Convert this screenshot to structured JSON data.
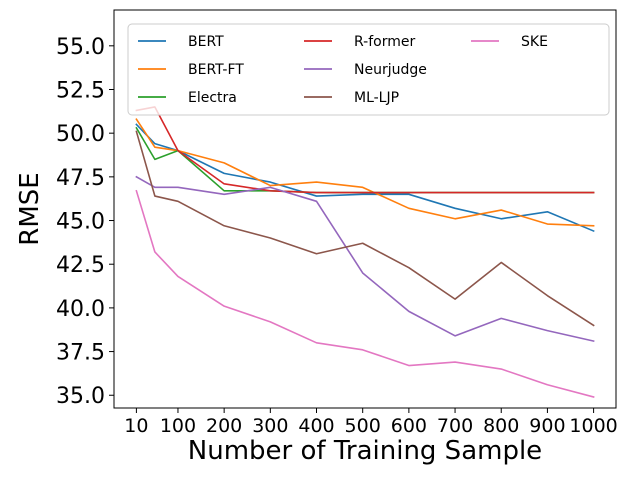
{
  "chart_data": {
    "type": "line",
    "title": "",
    "xlabel": "Number of Training Sample",
    "ylabel": "RMSE",
    "x": [
      10,
      50,
      100,
      200,
      300,
      400,
      500,
      600,
      700,
      800,
      900,
      1000
    ],
    "x_tick_labels": [
      "10",
      "100",
      "200",
      "300",
      "400",
      "500",
      "600",
      "700",
      "800",
      "900",
      "1000"
    ],
    "x_ticks": [
      10,
      100,
      200,
      300,
      400,
      500,
      600,
      700,
      800,
      900,
      1000
    ],
    "y_tick_labels": [
      "35.0",
      "37.5",
      "40.0",
      "42.5",
      "45.0",
      "47.5",
      "50.0",
      "52.5",
      "55.0"
    ],
    "y_ticks": [
      35.0,
      37.5,
      40.0,
      42.5,
      45.0,
      47.5,
      50.0,
      52.5,
      55.0
    ],
    "xlim": [
      -38.5,
      1048.5
    ],
    "ylim": [
      34.27,
      57.05
    ],
    "grid": false,
    "legend_position": "top-right",
    "legend_columns": 3,
    "series": [
      {
        "name": "BERT",
        "color": "#1f77b4",
        "values": [
          50.5,
          49.4,
          49.0,
          47.7,
          47.2,
          46.4,
          46.5,
          46.5,
          45.7,
          45.1,
          45.5,
          44.4
        ]
      },
      {
        "name": "BERT-FT",
        "color": "#ff7f0e",
        "values": [
          50.8,
          49.2,
          49.0,
          48.3,
          47.0,
          47.2,
          46.9,
          45.7,
          45.1,
          45.6,
          44.8,
          44.7
        ]
      },
      {
        "name": "Electra",
        "color": "#2ca02c",
        "values": [
          50.3,
          48.5,
          49.0,
          46.7,
          46.7,
          46.6,
          46.6,
          46.6,
          46.6,
          46.6,
          46.6,
          46.6
        ]
      },
      {
        "name": "R-former",
        "color": "#d62728",
        "values": [
          51.3,
          51.5,
          49.0,
          47.1,
          46.7,
          46.6,
          46.6,
          46.6,
          46.6,
          46.6,
          46.6,
          46.6
        ]
      },
      {
        "name": "Neurjudge",
        "color": "#9467bd",
        "values": [
          47.5,
          46.9,
          46.9,
          46.5,
          46.9,
          46.1,
          42.0,
          39.8,
          38.4,
          39.4,
          38.7,
          38.1
        ]
      },
      {
        "name": "ML-LJP",
        "color": "#8c564b",
        "values": [
          50.1,
          46.4,
          46.1,
          44.7,
          44.0,
          43.1,
          43.7,
          42.3,
          40.5,
          42.6,
          40.7,
          39.0
        ]
      },
      {
        "name": "SKE",
        "color": "#e377c2",
        "values": [
          46.7,
          43.2,
          41.8,
          40.1,
          39.2,
          38.0,
          37.6,
          36.7,
          36.9,
          36.5,
          35.6,
          34.9
        ]
      }
    ]
  }
}
